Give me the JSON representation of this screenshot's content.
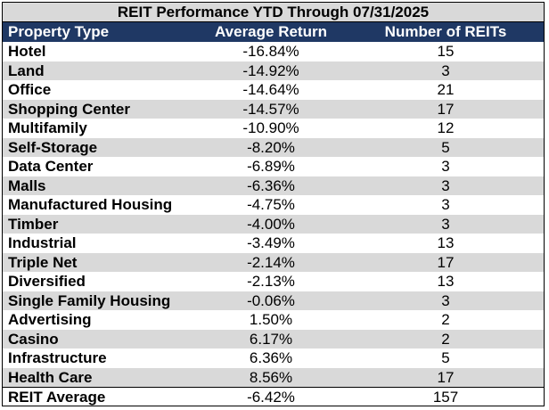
{
  "title": "REIT Performance YTD Through 07/31/2025",
  "headers": [
    "Property Type",
    "Average Return",
    "Number of REITs"
  ],
  "rows": [
    [
      "Hotel",
      "-16.84%",
      "15"
    ],
    [
      "Land",
      "-14.92%",
      "3"
    ],
    [
      "Office",
      "-14.64%",
      "21"
    ],
    [
      "Shopping Center",
      "-14.57%",
      "17"
    ],
    [
      "Multifamily",
      "-10.90%",
      "12"
    ],
    [
      "Self-Storage",
      "-8.20%",
      "5"
    ],
    [
      "Data Center",
      "-6.89%",
      "3"
    ],
    [
      "Malls",
      "-6.36%",
      "3"
    ],
    [
      "Manufactured Housing",
      "-4.75%",
      "3"
    ],
    [
      "Timber",
      "-4.00%",
      "3"
    ],
    [
      "Industrial",
      "-3.49%",
      "13"
    ],
    [
      "Triple Net",
      "-2.14%",
      "17"
    ],
    [
      "Diversified",
      "-2.13%",
      "13"
    ],
    [
      "Single Family Housing",
      "-0.06%",
      "3"
    ],
    [
      "Advertising",
      "1.50%",
      "2"
    ],
    [
      "Casino",
      "6.17%",
      "2"
    ],
    [
      "Infrastructure",
      "6.36%",
      "5"
    ],
    [
      "Health Care",
      "8.56%",
      "17"
    ]
  ],
  "total": [
    "REIT Average",
    "-6.42%",
    "157"
  ],
  "colors": {
    "header_bg": "#1f3864",
    "stripe": "#d9d9d9",
    "title_bg": "#d9d9d9"
  }
}
